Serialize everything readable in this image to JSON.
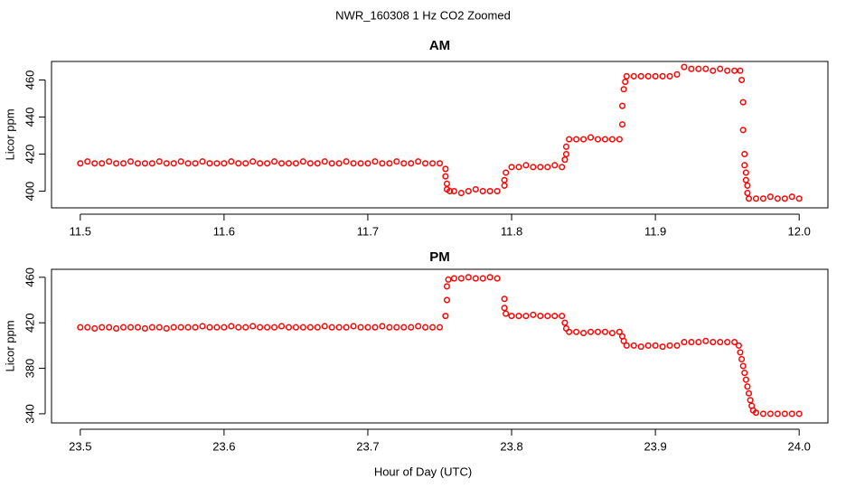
{
  "title": "NWR_160308  1 Hz CO2 Zoomed",
  "xlabel": "Hour of Day (UTC)",
  "chart_data": [
    {
      "type": "scatter",
      "title": "AM",
      "ylabel": "Licor ppm",
      "color": "#ff0000",
      "xlim": [
        11.48,
        12.02
      ],
      "ylim": [
        391,
        470
      ],
      "xticks": [
        11.5,
        11.6,
        11.7,
        11.8,
        11.9,
        {
          "value": 12,
          "label": "12.0"
        }
      ],
      "yticks": [
        400,
        420,
        440,
        460
      ],
      "x": [
        11.5,
        11.505,
        11.51,
        11.515,
        11.52,
        11.525,
        11.53,
        11.535,
        11.54,
        11.545,
        11.55,
        11.555,
        11.56,
        11.565,
        11.57,
        11.575,
        11.58,
        11.585,
        11.59,
        11.595,
        11.6,
        11.605,
        11.61,
        11.615,
        11.62,
        11.625,
        11.63,
        11.635,
        11.64,
        11.645,
        11.65,
        11.655,
        11.66,
        11.665,
        11.67,
        11.675,
        11.68,
        11.685,
        11.69,
        11.695,
        11.7,
        11.705,
        11.71,
        11.715,
        11.72,
        11.725,
        11.73,
        11.735,
        11.74,
        11.745,
        11.75,
        11.754,
        11.754,
        11.755,
        11.755,
        11.757,
        11.76,
        11.765,
        11.77,
        11.775,
        11.78,
        11.785,
        11.79,
        11.795,
        11.795,
        11.796,
        11.8,
        11.805,
        11.81,
        11.815,
        11.82,
        11.825,
        11.83,
        11.835,
        11.837,
        11.838,
        11.838,
        11.84,
        11.845,
        11.85,
        11.855,
        11.86,
        11.865,
        11.87,
        11.875,
        11.877,
        11.877,
        11.878,
        11.879,
        11.88,
        11.885,
        11.89,
        11.895,
        11.9,
        11.905,
        11.91,
        11.915,
        11.92,
        11.925,
        11.93,
        11.935,
        11.94,
        11.945,
        11.95,
        11.955,
        11.959,
        11.96,
        11.961,
        11.961,
        11.962,
        11.962,
        11.963,
        11.963,
        11.964,
        11.964,
        11.965,
        11.97,
        11.975,
        11.98,
        11.985,
        11.99,
        11.995,
        12
      ],
      "values": [
        415,
        416,
        415,
        415,
        416,
        415,
        415,
        416,
        415,
        415,
        415,
        416,
        415,
        415,
        416,
        415,
        415,
        416,
        415,
        415,
        415,
        416,
        415,
        415,
        416,
        415,
        415,
        416,
        415,
        415,
        415,
        416,
        415,
        415,
        416,
        415,
        415,
        416,
        415,
        415,
        415,
        416,
        415,
        415,
        416,
        415,
        415,
        416,
        415,
        415,
        415,
        412,
        408,
        404,
        401,
        400,
        400,
        399,
        400,
        401,
        400,
        400,
        400,
        403,
        406,
        410,
        413,
        413,
        414,
        413,
        413,
        413,
        414,
        413,
        417,
        420,
        424,
        428,
        428,
        428,
        429,
        428,
        428,
        428,
        428,
        436,
        446,
        455,
        459,
        462,
        462,
        462,
        462,
        462,
        462,
        462,
        463,
        467,
        466,
        466,
        466,
        465,
        466,
        465,
        465,
        465,
        460,
        448,
        433,
        420,
        414,
        410,
        406,
        403,
        399,
        396,
        396,
        396,
        397,
        396,
        396,
        397,
        396
      ]
    },
    {
      "type": "scatter",
      "title": "PM",
      "ylabel": "Licor ppm",
      "color": "#ff0000",
      "xlim": [
        23.48,
        24.02
      ],
      "ylim": [
        332,
        467
      ],
      "xticks": [
        23.5,
        23.6,
        23.7,
        23.8,
        23.9,
        {
          "value": 24,
          "label": "24.0"
        }
      ],
      "yticks": [
        340,
        380,
        420,
        460
      ],
      "x": [
        23.5,
        23.505,
        23.51,
        23.515,
        23.52,
        23.525,
        23.53,
        23.535,
        23.54,
        23.545,
        23.55,
        23.555,
        23.56,
        23.565,
        23.57,
        23.575,
        23.58,
        23.585,
        23.59,
        23.595,
        23.6,
        23.605,
        23.61,
        23.615,
        23.62,
        23.625,
        23.63,
        23.635,
        23.64,
        23.645,
        23.65,
        23.655,
        23.66,
        23.665,
        23.67,
        23.675,
        23.68,
        23.685,
        23.69,
        23.695,
        23.7,
        23.705,
        23.71,
        23.715,
        23.72,
        23.725,
        23.73,
        23.735,
        23.74,
        23.745,
        23.75,
        23.754,
        23.755,
        23.755,
        23.756,
        23.76,
        23.765,
        23.77,
        23.775,
        23.78,
        23.785,
        23.79,
        23.795,
        23.795,
        23.796,
        23.8,
        23.805,
        23.81,
        23.815,
        23.82,
        23.825,
        23.83,
        23.835,
        23.837,
        23.838,
        23.84,
        23.845,
        23.85,
        23.855,
        23.86,
        23.865,
        23.87,
        23.875,
        23.877,
        23.878,
        23.88,
        23.885,
        23.89,
        23.895,
        23.9,
        23.905,
        23.91,
        23.915,
        23.92,
        23.925,
        23.93,
        23.935,
        23.94,
        23.945,
        23.95,
        23.955,
        23.958,
        23.959,
        23.96,
        23.961,
        23.962,
        23.963,
        23.964,
        23.965,
        23.966,
        23.967,
        23.968,
        23.97,
        23.975,
        23.98,
        23.985,
        23.99,
        23.995,
        24
      ],
      "values": [
        416,
        416,
        415,
        416,
        416,
        415,
        416,
        416,
        416,
        415,
        416,
        416,
        415,
        416,
        416,
        416,
        416,
        417,
        416,
        416,
        416,
        417,
        416,
        416,
        417,
        416,
        416,
        416,
        417,
        416,
        416,
        416,
        416,
        416,
        417,
        416,
        416,
        416,
        417,
        416,
        416,
        416,
        417,
        416,
        416,
        416,
        416,
        417,
        416,
        416,
        416,
        426,
        440,
        452,
        458,
        459,
        459,
        460,
        459,
        459,
        460,
        459,
        441,
        433,
        428,
        426,
        426,
        426,
        427,
        426,
        426,
        426,
        426,
        420,
        415,
        412,
        412,
        411,
        412,
        412,
        412,
        411,
        412,
        408,
        404,
        400,
        400,
        399,
        400,
        400,
        399,
        400,
        400,
        403,
        403,
        403,
        404,
        403,
        403,
        403,
        403,
        400,
        394,
        388,
        382,
        376,
        370,
        364,
        358,
        352,
        347,
        343,
        341,
        340,
        340,
        340,
        340,
        340,
        340
      ]
    }
  ]
}
